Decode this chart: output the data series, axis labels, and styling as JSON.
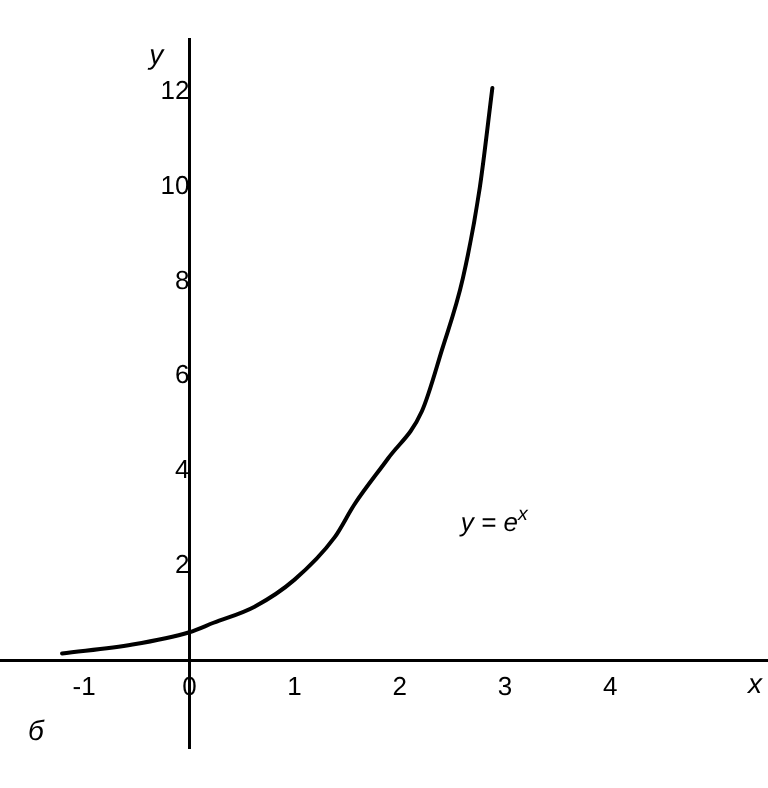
{
  "chart_data": {
    "type": "line",
    "xlabel": "x",
    "ylabel": "y",
    "xlim": [
      -1.8,
      5.5
    ],
    "ylim": [
      -1.85,
      13.1
    ],
    "xticks": [
      -1,
      0,
      1,
      2,
      3,
      4
    ],
    "yticks": [
      2,
      4,
      6,
      8,
      10,
      12
    ],
    "grid": false,
    "legend": false,
    "marker": "none",
    "line_style": "solid",
    "series": [
      {
        "name": "y = e$^{x}$",
        "color": "#000000",
        "x": [
          -1.21,
          -0.54,
          0,
          0.23,
          0.62,
          1.0,
          1.38,
          1.57,
          1.89,
          2.21,
          2.4,
          2.6,
          2.76,
          2.88
        ],
        "values": [
          0.15,
          0.34,
          0.6,
          0.8,
          1.14,
          1.71,
          2.6,
          3.3,
          4.27,
          5.26,
          6.55,
          8.07,
          9.97,
          12.08
        ]
      }
    ],
    "annotations": [
      "б"
    ]
  }
}
